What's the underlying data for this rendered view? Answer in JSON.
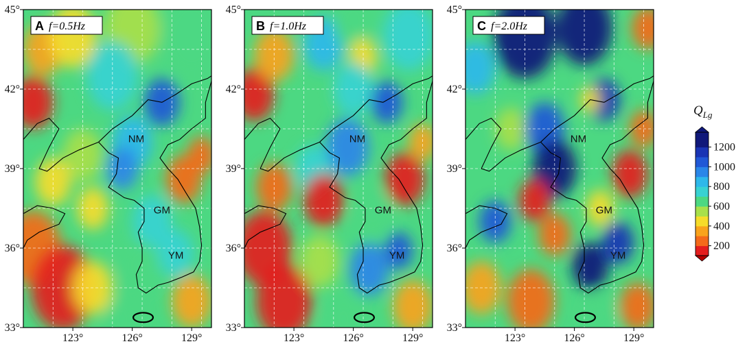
{
  "chart_data": {
    "type": "heatmap",
    "panels": [
      {
        "letter": "A",
        "freq": "f=0.5Hz",
        "blobs": [
          {
            "lon": 121.0,
            "lat": 36.0,
            "q": 250,
            "r": 1.4
          },
          {
            "lon": 122.5,
            "lat": 34.5,
            "q": 200,
            "r": 1.6
          },
          {
            "lon": 121.0,
            "lat": 41.5,
            "q": 200,
            "r": 1.0
          },
          {
            "lon": 121.5,
            "lat": 43.5,
            "q": 350,
            "r": 1.0
          },
          {
            "lon": 123.0,
            "lat": 44.0,
            "q": 500,
            "r": 1.2
          },
          {
            "lon": 126.0,
            "lat": 44.3,
            "q": 600,
            "r": 1.4
          },
          {
            "lon": 129.0,
            "lat": 44.0,
            "q": 650,
            "r": 1.5
          },
          {
            "lon": 125.0,
            "lat": 42.5,
            "q": 800,
            "r": 1.3
          },
          {
            "lon": 127.5,
            "lat": 41.5,
            "q": 1050,
            "r": 0.9
          },
          {
            "lon": 126.0,
            "lat": 40.0,
            "q": 900,
            "r": 1.0
          },
          {
            "lon": 125.5,
            "lat": 39.0,
            "q": 1000,
            "r": 0.8
          },
          {
            "lon": 128.6,
            "lat": 38.6,
            "q": 250,
            "r": 0.9
          },
          {
            "lon": 129.5,
            "lat": 39.5,
            "q": 300,
            "r": 0.7
          },
          {
            "lon": 123.5,
            "lat": 39.5,
            "q": 600,
            "r": 1.0
          },
          {
            "lon": 122.0,
            "lat": 38.5,
            "q": 450,
            "r": 0.9
          },
          {
            "lon": 124.0,
            "lat": 37.5,
            "q": 500,
            "r": 0.8
          },
          {
            "lon": 127.0,
            "lat": 37.0,
            "q": 800,
            "r": 1.0
          },
          {
            "lon": 126.3,
            "lat": 35.3,
            "q": 700,
            "r": 1.0
          },
          {
            "lon": 128.2,
            "lat": 35.8,
            "q": 800,
            "r": 0.9
          },
          {
            "lon": 124.0,
            "lat": 34.5,
            "q": 500,
            "r": 1.0
          },
          {
            "lon": 129.0,
            "lat": 34.0,
            "q": 400,
            "r": 1.0
          },
          {
            "lon": 125.5,
            "lat": 33.3,
            "q": 650,
            "r": 0.9
          }
        ]
      },
      {
        "letter": "B",
        "freq": "f=1.0Hz",
        "blobs": [
          {
            "lon": 121.5,
            "lat": 36.0,
            "q": 200,
            "r": 1.4
          },
          {
            "lon": 122.5,
            "lat": 34.0,
            "q": 200,
            "r": 1.4
          },
          {
            "lon": 121.0,
            "lat": 41.8,
            "q": 200,
            "r": 1.0
          },
          {
            "lon": 122.0,
            "lat": 43.3,
            "q": 400,
            "r": 1.0
          },
          {
            "lon": 124.5,
            "lat": 43.7,
            "q": 900,
            "r": 1.0
          },
          {
            "lon": 126.0,
            "lat": 44.5,
            "q": 700,
            "r": 1.0
          },
          {
            "lon": 126.5,
            "lat": 43.2,
            "q": 500,
            "r": 0.7
          },
          {
            "lon": 128.8,
            "lat": 44.0,
            "q": 800,
            "r": 1.3
          },
          {
            "lon": 126.0,
            "lat": 42.0,
            "q": 800,
            "r": 1.0
          },
          {
            "lon": 127.7,
            "lat": 41.5,
            "q": 1100,
            "r": 0.8
          },
          {
            "lon": 125.7,
            "lat": 39.8,
            "q": 950,
            "r": 1.1
          },
          {
            "lon": 124.0,
            "lat": 39.0,
            "q": 800,
            "r": 0.9
          },
          {
            "lon": 128.6,
            "lat": 38.6,
            "q": 200,
            "r": 1.0
          },
          {
            "lon": 129.5,
            "lat": 40.0,
            "q": 350,
            "r": 0.7
          },
          {
            "lon": 124.5,
            "lat": 37.8,
            "q": 200,
            "r": 1.0
          },
          {
            "lon": 122.0,
            "lat": 38.3,
            "q": 300,
            "r": 0.9
          },
          {
            "lon": 127.0,
            "lat": 37.3,
            "q": 650,
            "r": 0.9
          },
          {
            "lon": 126.8,
            "lat": 35.2,
            "q": 950,
            "r": 1.0
          },
          {
            "lon": 128.3,
            "lat": 35.9,
            "q": 1100,
            "r": 0.7
          },
          {
            "lon": 124.3,
            "lat": 35.5,
            "q": 600,
            "r": 1.0
          },
          {
            "lon": 129.0,
            "lat": 33.8,
            "q": 350,
            "r": 1.0
          },
          {
            "lon": 125.5,
            "lat": 33.3,
            "q": 700,
            "r": 0.9
          }
        ]
      },
      {
        "letter": "C",
        "freq": "f=2.0Hz",
        "blobs": [
          {
            "lon": 123.5,
            "lat": 44.0,
            "q": 1300,
            "r": 1.6
          },
          {
            "lon": 126.5,
            "lat": 44.3,
            "q": 1250,
            "r": 1.4
          },
          {
            "lon": 129.7,
            "lat": 44.3,
            "q": 250,
            "r": 0.8
          },
          {
            "lon": 121.0,
            "lat": 42.8,
            "q": 900,
            "r": 1.0
          },
          {
            "lon": 122.8,
            "lat": 40.5,
            "q": 600,
            "r": 0.8
          },
          {
            "lon": 124.5,
            "lat": 40.5,
            "q": 1100,
            "r": 1.0
          },
          {
            "lon": 125.0,
            "lat": 39.0,
            "q": 1300,
            "r": 1.1
          },
          {
            "lon": 127.5,
            "lat": 41.6,
            "q": 1200,
            "r": 0.8
          },
          {
            "lon": 126.8,
            "lat": 41.6,
            "q": 450,
            "r": 0.5
          },
          {
            "lon": 128.8,
            "lat": 38.8,
            "q": 200,
            "r": 0.9
          },
          {
            "lon": 129.5,
            "lat": 40.5,
            "q": 300,
            "r": 0.7
          },
          {
            "lon": 124.0,
            "lat": 37.8,
            "q": 200,
            "r": 0.8
          },
          {
            "lon": 122.0,
            "lat": 37.0,
            "q": 1100,
            "r": 0.8
          },
          {
            "lon": 121.3,
            "lat": 34.5,
            "q": 350,
            "r": 1.0
          },
          {
            "lon": 123.8,
            "lat": 34.0,
            "q": 300,
            "r": 1.2
          },
          {
            "lon": 126.8,
            "lat": 35.3,
            "q": 1300,
            "r": 0.9
          },
          {
            "lon": 128.2,
            "lat": 36.2,
            "q": 1200,
            "r": 0.8
          },
          {
            "lon": 127.3,
            "lat": 37.5,
            "q": 500,
            "r": 0.7
          },
          {
            "lon": 129.2,
            "lat": 33.8,
            "q": 250,
            "r": 0.9
          },
          {
            "lon": 127.3,
            "lat": 33.5,
            "q": 700,
            "r": 0.8
          },
          {
            "lon": 125.0,
            "lat": 36.5,
            "q": 250,
            "r": 0.8
          }
        ]
      }
    ],
    "x_ticks": [
      {
        "value": 123,
        "label": "123°"
      },
      {
        "value": 126,
        "label": "126°"
      },
      {
        "value": 129,
        "label": "129°"
      }
    ],
    "y_ticks": [
      {
        "value": 33,
        "label": "33°"
      },
      {
        "value": 36,
        "label": "36°"
      },
      {
        "value": 39,
        "label": "39°"
      },
      {
        "value": 42,
        "label": "42°"
      },
      {
        "value": 45,
        "label": "45°"
      }
    ],
    "xlim": [
      120.5,
      130
    ],
    "ylim": [
      33,
      45
    ],
    "region_labels": [
      {
        "text": "NM",
        "lon": 126.2,
        "lat": 40.0
      },
      {
        "text": "GM",
        "lon": 127.5,
        "lat": 37.3
      },
      {
        "text": "YM",
        "lon": 128.2,
        "lat": 35.6
      }
    ],
    "colorbar": {
      "title_main": "Q",
      "title_sub": "Lg",
      "ticks": [
        200,
        400,
        600,
        800,
        1000,
        1200
      ],
      "range": [
        100,
        1350
      ],
      "stops": [
        {
          "q": 100,
          "color": "#b40000"
        },
        {
          "q": 200,
          "color": "#e41e1e"
        },
        {
          "q": 300,
          "color": "#f46a1a"
        },
        {
          "q": 400,
          "color": "#f9a31c"
        },
        {
          "q": 500,
          "color": "#f6dc2a"
        },
        {
          "q": 600,
          "color": "#a8e04a"
        },
        {
          "q": 700,
          "color": "#4cd882"
        },
        {
          "q": 800,
          "color": "#38d2d2"
        },
        {
          "q": 900,
          "color": "#2eb8ea"
        },
        {
          "q": 1000,
          "color": "#2a86e8"
        },
        {
          "q": 1100,
          "color": "#2158d6"
        },
        {
          "q": 1200,
          "color": "#1a34b4"
        },
        {
          "q": 1350,
          "color": "#10187a"
        }
      ]
    }
  }
}
